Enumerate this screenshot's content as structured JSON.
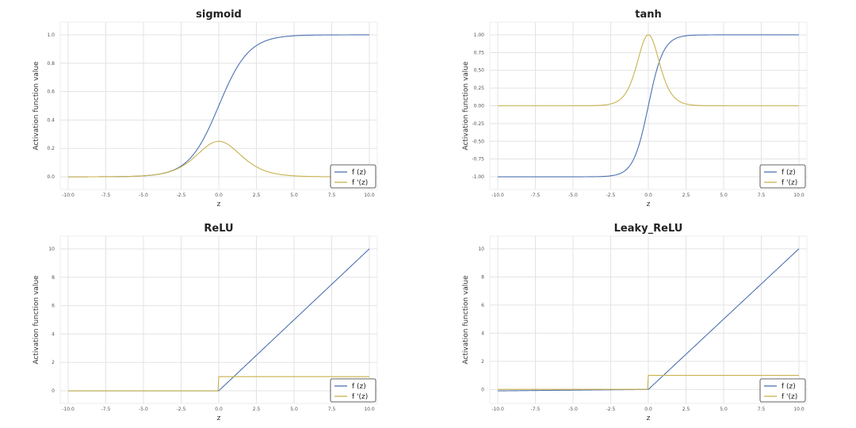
{
  "colors": {
    "f": "#4c72b0",
    "df": "#c9b24e"
  },
  "legend_labels": [
    "f (z)",
    "f '(z)"
  ],
  "chart_data": [
    {
      "type": "line",
      "title": "sigmoid",
      "func": "sigmoid",
      "xlabel": "z",
      "ylabel": "Activation function value",
      "xlim": [
        -10,
        10
      ],
      "ylim": [
        -0.05,
        1.05
      ],
      "xticks": [
        -10,
        -7.5,
        -5,
        -2.5,
        0,
        2.5,
        5,
        7.5,
        10
      ],
      "xticklabels": [
        "-10.0",
        "-7.5",
        "-5.0",
        "-2.5",
        "0.0",
        "2.5",
        "5.0",
        "7.5",
        "10.0"
      ],
      "yticks": [
        0,
        0.2,
        0.4,
        0.6,
        0.8,
        1.0
      ],
      "yticklabels": [
        "0.0",
        "0.2",
        "0.4",
        "0.6",
        "0.8",
        "1.0"
      ],
      "grid": true,
      "legend_position": "bottom-right",
      "series": [
        {
          "name": "f (z)",
          "x": [
            -10,
            -7.5,
            -5,
            -2.5,
            0,
            2.5,
            5,
            7.5,
            10
          ],
          "y": [
            0.0,
            0.001,
            0.007,
            0.076,
            0.5,
            0.924,
            0.993,
            0.999,
            1.0
          ]
        },
        {
          "name": "f '(z)",
          "x": [
            -10,
            -7.5,
            -5,
            -2.5,
            0,
            2.5,
            5,
            7.5,
            10
          ],
          "y": [
            0.0,
            0.001,
            0.007,
            0.07,
            0.25,
            0.07,
            0.007,
            0.001,
            0.0
          ]
        }
      ]
    },
    {
      "type": "line",
      "title": "tanh",
      "func": "tanh",
      "xlabel": "z",
      "ylabel": "Activation function value",
      "xlim": [
        -10,
        10
      ],
      "ylim": [
        -1.1,
        1.1
      ],
      "xticks": [
        -10,
        -7.5,
        -5,
        -2.5,
        0,
        2.5,
        5,
        7.5,
        10
      ],
      "xticklabels": [
        "-10.0",
        "-7.5",
        "-5.0",
        "-2.5",
        "0.0",
        "2.5",
        "5.0",
        "7.5",
        "10.0"
      ],
      "yticks": [
        -1,
        -0.75,
        -0.5,
        -0.25,
        0,
        0.25,
        0.5,
        0.75,
        1
      ],
      "yticklabels": [
        "-1.00",
        "-0.75",
        "-0.50",
        "-0.25",
        "0.00",
        "0.25",
        "0.50",
        "0.75",
        "1.00"
      ],
      "grid": true,
      "legend_position": "bottom-right",
      "series": [
        {
          "name": "f (z)",
          "x": [
            -10,
            -7.5,
            -5,
            -2.5,
            0,
            2.5,
            5,
            7.5,
            10
          ],
          "y": [
            -1.0,
            -1.0,
            -1.0,
            -0.987,
            0.0,
            0.987,
            1.0,
            1.0,
            1.0
          ]
        },
        {
          "name": "f '(z)",
          "x": [
            -10,
            -7.5,
            -5,
            -2.5,
            0,
            2.5,
            5,
            7.5,
            10
          ],
          "y": [
            0.0,
            0.0,
            0.0,
            0.027,
            1.0,
            0.027,
            0.0,
            0.0,
            0.0
          ]
        }
      ]
    },
    {
      "type": "line",
      "title": "ReLU",
      "func": "relu",
      "xlabel": "z",
      "ylabel": "Activation function value",
      "xlim": [
        -10,
        10
      ],
      "ylim": [
        -0.5,
        10.5
      ],
      "xticks": [
        -10,
        -7.5,
        -5,
        -2.5,
        0,
        2.5,
        5,
        7.5,
        10
      ],
      "xticklabels": [
        "-10.0",
        "-7.5",
        "-5.0",
        "-2.5",
        "0.0",
        "2.5",
        "5.0",
        "7.5",
        "10.0"
      ],
      "yticks": [
        0,
        2,
        4,
        6,
        8,
        10
      ],
      "yticklabels": [
        "0",
        "2",
        "4",
        "6",
        "8",
        "10"
      ],
      "grid": true,
      "legend_position": "bottom-right",
      "series": [
        {
          "name": "f (z)",
          "x": [
            -10,
            0,
            10
          ],
          "y": [
            0,
            0,
            10
          ]
        },
        {
          "name": "f '(z)",
          "x": [
            -10,
            0,
            0,
            10
          ],
          "y": [
            0,
            0,
            1,
            1
          ]
        }
      ]
    },
    {
      "type": "line",
      "title": "Leaky_ReLU",
      "func": "leaky_relu",
      "xlabel": "z",
      "ylabel": "Activation function value",
      "xlim": [
        -10,
        10
      ],
      "ylim": [
        -0.6,
        10.5
      ],
      "xticks": [
        -10,
        -7.5,
        -5,
        -2.5,
        0,
        2.5,
        5,
        7.5,
        10
      ],
      "xticklabels": [
        "-10.0",
        "-7.5",
        "-5.0",
        "-2.5",
        "0.0",
        "2.5",
        "5.0",
        "7.5",
        "10.0"
      ],
      "yticks": [
        0,
        2,
        4,
        6,
        8,
        10
      ],
      "yticklabels": [
        "0",
        "2",
        "4",
        "6",
        "8",
        "10"
      ],
      "grid": true,
      "legend_position": "bottom-right",
      "series": [
        {
          "name": "f (z)",
          "x": [
            -10,
            0,
            10
          ],
          "y": [
            -0.1,
            0,
            10
          ]
        },
        {
          "name": "f '(z)",
          "x": [
            -10,
            0,
            0,
            10
          ],
          "y": [
            0.01,
            0.01,
            1,
            1
          ]
        }
      ]
    }
  ]
}
